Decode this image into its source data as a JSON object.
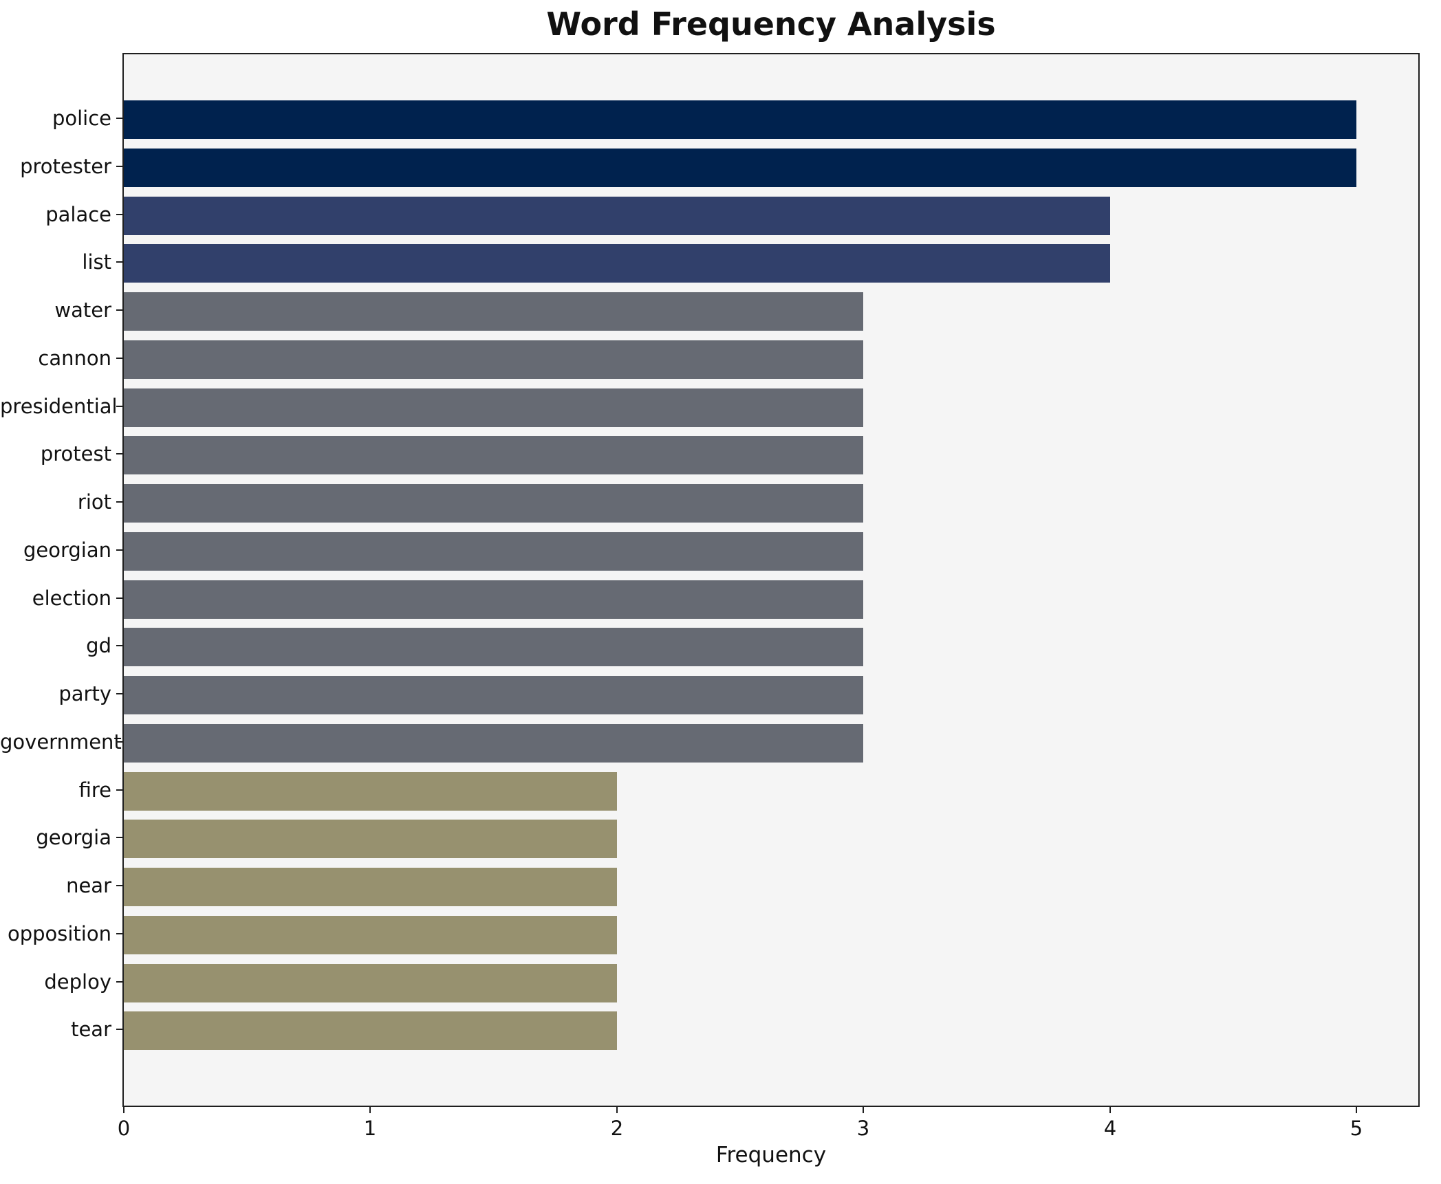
{
  "title": "Word Frequency Analysis",
  "chart_data": {
    "type": "bar",
    "orientation": "horizontal",
    "title": "Word Frequency Analysis",
    "xlabel": "Frequency",
    "ylabel": "",
    "categories": [
      "police",
      "protester",
      "palace",
      "list",
      "water",
      "cannon",
      "presidential",
      "protest",
      "riot",
      "georgian",
      "election",
      "gd",
      "party",
      "government",
      "fire",
      "georgia",
      "near",
      "opposition",
      "deploy",
      "tear"
    ],
    "values": [
      5,
      5,
      4,
      4,
      3,
      3,
      3,
      3,
      3,
      3,
      3,
      3,
      3,
      3,
      2,
      2,
      2,
      2,
      2,
      2
    ],
    "xlim": [
      0,
      5.25
    ],
    "xticks": [
      0,
      1,
      2,
      3,
      4,
      5
    ],
    "grid": false,
    "legend": "none",
    "colors_by_value": {
      "5": "#00224e",
      "4": "#31406b",
      "3": "#666a73",
      "2": "#97916f"
    },
    "plot_background": "#f5f5f5",
    "figure_background": "#ffffff",
    "spine_color": "#1f1f1f",
    "text_color": "#111111"
  }
}
